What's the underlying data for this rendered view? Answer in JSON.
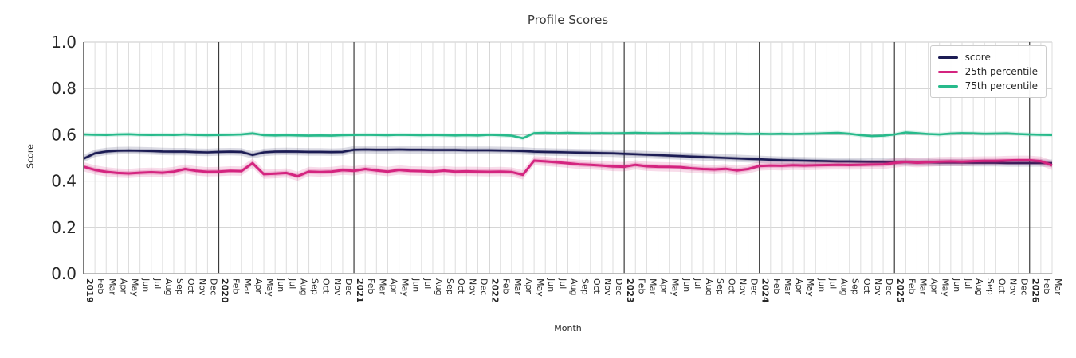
{
  "chart_data": {
    "type": "line",
    "title": "Profile Scores",
    "xlabel": "Month",
    "ylabel": "Score",
    "ylim": [
      0.0,
      1.0
    ],
    "yticks": [
      "0.0",
      "0.2",
      "0.4",
      "0.6",
      "0.8",
      "1.0"
    ],
    "grid": "on",
    "legend_position": "upper right",
    "x_labels": [
      "2019",
      "Feb",
      "Mar",
      "Apr",
      "May",
      "Jun",
      "Jul",
      "Aug",
      "Sep",
      "Oct",
      "Nov",
      "Dec",
      "2020",
      "Feb",
      "Mar",
      "Apr",
      "May",
      "Jun",
      "Jul",
      "Aug",
      "Sep",
      "Oct",
      "Nov",
      "Dec",
      "2021",
      "Feb",
      "Mar",
      "Apr",
      "May",
      "Jun",
      "Jul",
      "Aug",
      "Sep",
      "Oct",
      "Nov",
      "Dec",
      "2022",
      "Feb",
      "Mar",
      "Apr",
      "May",
      "Jun",
      "Jul",
      "Aug",
      "Sep",
      "Oct",
      "Nov",
      "Dec",
      "2023",
      "Feb",
      "Mar",
      "Apr",
      "May",
      "Jun",
      "Jul",
      "Aug",
      "Sep",
      "Oct",
      "Nov",
      "Dec",
      "2024",
      "Feb",
      "Mar",
      "Apr",
      "May",
      "Jun",
      "Jul",
      "Aug",
      "Sep",
      "Oct",
      "Nov",
      "Dec",
      "2025",
      "Feb",
      "Mar",
      "Apr",
      "May",
      "Jun",
      "Jul",
      "Aug",
      "Sep",
      "Oct",
      "Nov",
      "Dec",
      "2026",
      "Feb",
      "Mar"
    ],
    "series": [
      {
        "name": "score",
        "color": "#1c1c54",
        "band_width": 0.016,
        "values": [
          0.497,
          0.52,
          0.528,
          0.531,
          0.532,
          0.531,
          0.53,
          0.528,
          0.527,
          0.527,
          0.525,
          0.524,
          0.526,
          0.527,
          0.526,
          0.513,
          0.524,
          0.527,
          0.528,
          0.527,
          0.526,
          0.526,
          0.525,
          0.526,
          0.535,
          0.536,
          0.535,
          0.535,
          0.536,
          0.535,
          0.535,
          0.534,
          0.534,
          0.534,
          0.533,
          0.533,
          0.533,
          0.532,
          0.531,
          0.53,
          0.527,
          0.526,
          0.525,
          0.524,
          0.523,
          0.522,
          0.521,
          0.52,
          0.518,
          0.516,
          0.514,
          0.512,
          0.51,
          0.508,
          0.506,
          0.504,
          0.502,
          0.5,
          0.498,
          0.496,
          0.494,
          0.492,
          0.49,
          0.489,
          0.488,
          0.487,
          0.486,
          0.485,
          0.485,
          0.484,
          0.483,
          0.483,
          0.482,
          0.482,
          0.481,
          0.481,
          0.48,
          0.48,
          0.48,
          0.479,
          0.479,
          0.479,
          0.478,
          0.478,
          0.478,
          0.478,
          0.477
        ]
      },
      {
        "name": "25th percentile",
        "color": "#d4247f",
        "band_width": 0.02,
        "values": [
          0.462,
          0.448,
          0.44,
          0.435,
          0.433,
          0.436,
          0.438,
          0.436,
          0.441,
          0.452,
          0.444,
          0.44,
          0.441,
          0.444,
          0.443,
          0.477,
          0.43,
          0.432,
          0.435,
          0.421,
          0.441,
          0.439,
          0.441,
          0.447,
          0.444,
          0.452,
          0.446,
          0.441,
          0.448,
          0.444,
          0.443,
          0.441,
          0.445,
          0.441,
          0.442,
          0.441,
          0.44,
          0.441,
          0.439,
          0.427,
          0.488,
          0.485,
          0.481,
          0.477,
          0.472,
          0.47,
          0.467,
          0.463,
          0.462,
          0.47,
          0.464,
          0.462,
          0.461,
          0.46,
          0.455,
          0.452,
          0.45,
          0.453,
          0.446,
          0.452,
          0.465,
          0.467,
          0.466,
          0.468,
          0.467,
          0.468,
          0.469,
          0.47,
          0.469,
          0.47,
          0.471,
          0.472,
          0.478,
          0.483,
          0.479,
          0.482,
          0.484,
          0.485,
          0.484,
          0.486,
          0.487,
          0.487,
          0.489,
          0.49,
          0.49,
          0.486,
          0.468
        ]
      },
      {
        "name": "75th percentile",
        "color": "#27ba8b",
        "band_width": 0.009,
        "values": [
          0.601,
          0.6,
          0.599,
          0.601,
          0.602,
          0.6,
          0.599,
          0.6,
          0.599,
          0.601,
          0.599,
          0.598,
          0.599,
          0.6,
          0.601,
          0.606,
          0.598,
          0.597,
          0.598,
          0.597,
          0.596,
          0.597,
          0.596,
          0.598,
          0.599,
          0.6,
          0.599,
          0.598,
          0.6,
          0.599,
          0.598,
          0.599,
          0.598,
          0.597,
          0.598,
          0.597,
          0.6,
          0.598,
          0.596,
          0.585,
          0.607,
          0.608,
          0.607,
          0.608,
          0.607,
          0.606,
          0.607,
          0.606,
          0.607,
          0.608,
          0.607,
          0.606,
          0.607,
          0.606,
          0.607,
          0.606,
          0.605,
          0.604,
          0.605,
          0.603,
          0.604,
          0.603,
          0.604,
          0.603,
          0.604,
          0.605,
          0.607,
          0.608,
          0.604,
          0.598,
          0.594,
          0.596,
          0.601,
          0.61,
          0.607,
          0.603,
          0.601,
          0.605,
          0.607,
          0.606,
          0.604,
          0.605,
          0.606,
          0.603,
          0.601,
          0.6,
          0.599
        ]
      }
    ],
    "style": {
      "year_line_color": "#3c3c3c",
      "month_grid_color": "#dddddd",
      "h_grid_color": "#c9c9c9",
      "bottom_spine_color": "#b2b2b2",
      "tick_label_color": "#262626"
    }
  }
}
